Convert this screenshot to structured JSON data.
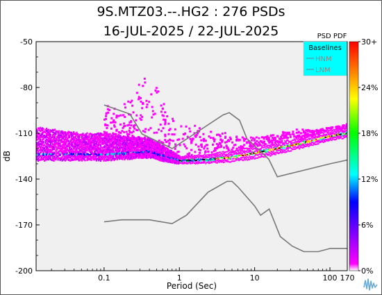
{
  "title_line1": "9S.MTZ03.--.HG2 : 276 PSDs",
  "title_line2": "16-JUL-2025 / 22-JUL-2025",
  "chart_data": {
    "type": "heatmap",
    "xlabel": "Period (Sec)",
    "ylabel": "dB",
    "x_scale": "log",
    "xlim": [
      0.0125,
      170
    ],
    "ylim": [
      -200,
      -50
    ],
    "x_ticks": [
      0.1,
      1,
      10,
      100,
      170
    ],
    "x_tick_labels": [
      "0.1",
      "1",
      "10",
      "100",
      "170"
    ],
    "y_ticks": [
      -200,
      -170,
      -140,
      -110,
      -80,
      -50
    ],
    "y_tick_labels": [
      "-200",
      "-170",
      "-140",
      "-110",
      "-80",
      "-50"
    ],
    "background_color": "#f0f0f0",
    "colorbar": {
      "title": "PSD PDF",
      "ticks": [
        "0%",
        "6%",
        "12%",
        "18%",
        "24%",
        "30+"
      ],
      "colors": [
        "#ffffff",
        "#ff00ff",
        "#0000ff",
        "#00ffff",
        "#00ff00",
        "#ffff00",
        "#ff8000",
        "#ff0000"
      ]
    },
    "legend": {
      "title": "Baselines",
      "placement": "top-right",
      "background": "#00ffff",
      "entries": [
        "HNM",
        "LNM"
      ]
    },
    "series": [
      {
        "name": "HNM",
        "color": "#777777",
        "x": [
          0.1,
          0.22,
          0.32,
          0.8,
          3.8,
          4.6,
          6.3,
          7.9,
          15.4,
          20,
          100,
          170
        ],
        "y": [
          -91.5,
          -97.4,
          -110.5,
          -120,
          -98,
          -96.5,
          -101.5,
          -113.5,
          -127,
          -138.5,
          -130,
          -127.5
        ]
      },
      {
        "name": "LNM",
        "color": "#777777",
        "x": [
          0.1,
          0.17,
          0.4,
          0.8,
          1.24,
          2.4,
          4.3,
          5.0,
          6.0,
          10,
          12,
          15.6,
          21.9,
          31.6,
          45,
          70,
          101,
          154,
          170
        ],
        "y": [
          -168,
          -166.7,
          -166.7,
          -169.2,
          -163.7,
          -148.6,
          -141.5,
          -141.5,
          -145.2,
          -157.6,
          -163.7,
          -159.6,
          -177.6,
          -183.9,
          -187.5,
          -187.5,
          -185.4,
          -185.4,
          -185.4
        ]
      }
    ],
    "density_mode": {
      "x": [
        0.0125,
        0.05,
        0.1,
        0.2,
        0.4,
        0.7,
        1,
        2,
        5,
        10,
        20,
        50,
        100,
        170
      ],
      "y": [
        -124,
        -124,
        -124,
        -123,
        -122,
        -126,
        -128,
        -127.5,
        -126,
        -123,
        -120,
        -115.5,
        -112,
        -110
      ]
    },
    "density_upper": {
      "x": [
        0.0125,
        0.05,
        0.1,
        0.2,
        0.4,
        0.7,
        1,
        2,
        5,
        10,
        20,
        50,
        100,
        170
      ],
      "y": [
        -106,
        -110,
        -110,
        -112,
        -113,
        -120,
        -125,
        -124,
        -121,
        -118,
        -116,
        -112,
        -108,
        -106
      ]
    },
    "density_lower": {
      "x": [
        0.0125,
        0.05,
        0.1,
        0.2,
        0.4,
        0.7,
        1,
        2,
        5,
        10,
        20,
        50,
        100,
        170
      ],
      "y": [
        -128,
        -128,
        -128,
        -127,
        -126,
        -129,
        -130,
        -130,
        -129,
        -127,
        -124,
        -119,
        -115,
        -113
      ]
    },
    "density_sparse_upper": {
      "x": [
        0.1,
        0.16,
        0.25,
        0.35,
        0.5,
        0.7,
        1.0,
        2.0,
        4.0,
        8,
        15,
        30,
        60,
        100,
        170
      ],
      "y": [
        -90,
        -93,
        -85,
        -67,
        -79,
        -95,
        -103,
        -106,
        -109,
        -112,
        -111,
        -106,
        -108,
        -106,
        -104
      ]
    }
  }
}
